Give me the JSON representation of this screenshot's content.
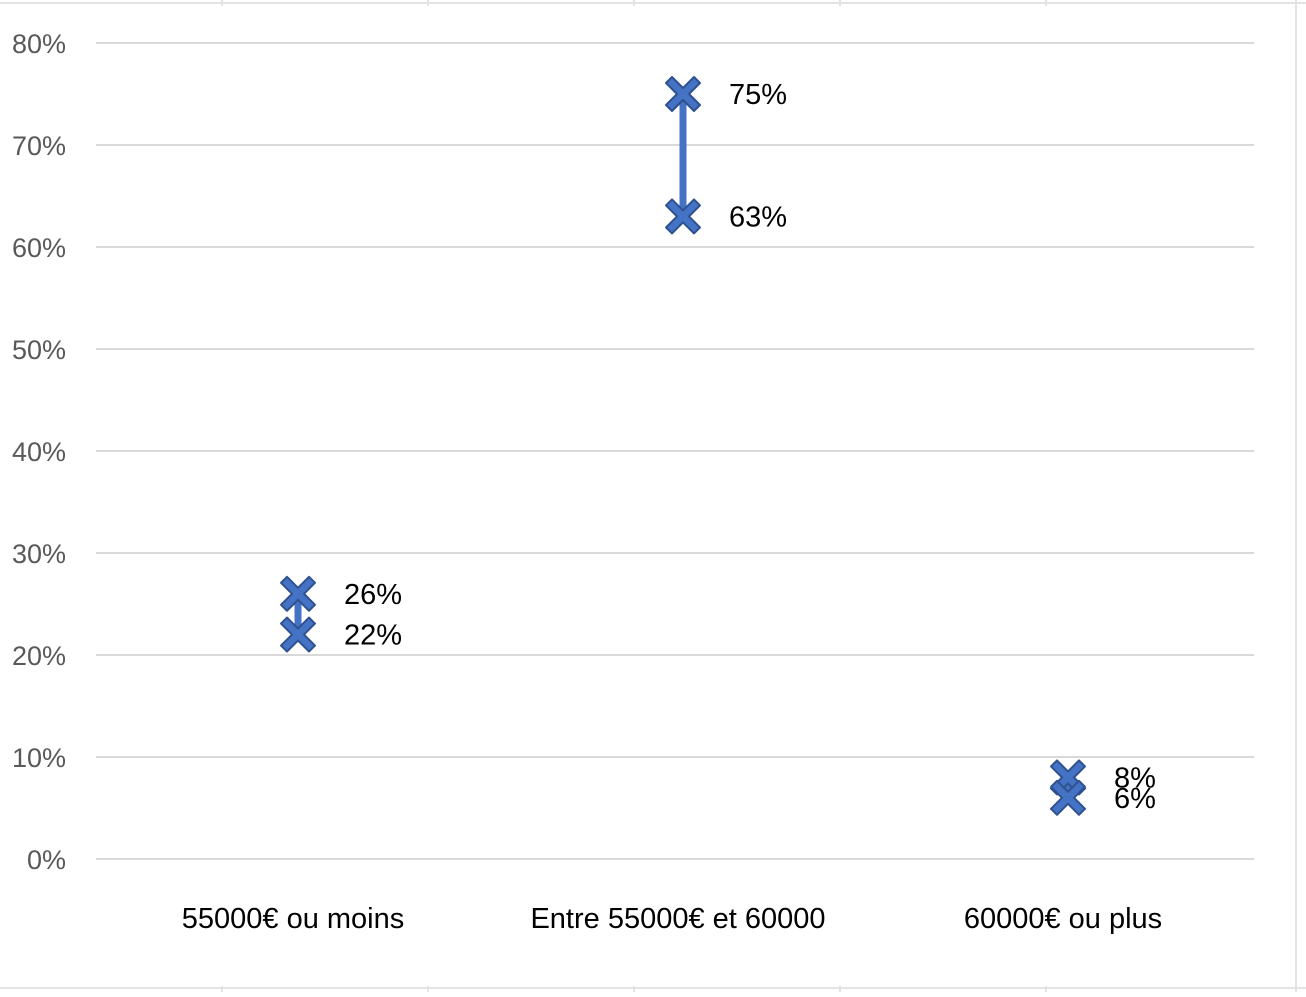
{
  "chart_data": {
    "type": "scatter",
    "title": "",
    "xlabel": "",
    "ylabel": "",
    "ylim": [
      0,
      0.8
    ],
    "y_ticks": [
      "0%",
      "10%",
      "20%",
      "30%",
      "40%",
      "50%",
      "60%",
      "70%",
      "80%"
    ],
    "grid": true,
    "legend": "none",
    "categories": [
      "55000€ ou moins",
      "Entre 55000€ et 60000",
      "60000€ ou plus"
    ],
    "series": [
      {
        "values": [
          0.26,
          0.75,
          0.08
        ],
        "labels": [
          "26%",
          "75%",
          "8%"
        ]
      },
      {
        "values": [
          0.22,
          0.63,
          0.06
        ],
        "labels": [
          "22%",
          "63%",
          "6%"
        ]
      }
    ],
    "connector": "vertical line between the two points in each category",
    "marker": "x-cross",
    "color": "#4472c4",
    "marker_edge_color": "#2f528f",
    "gridline_color": "#d9d9d9"
  }
}
